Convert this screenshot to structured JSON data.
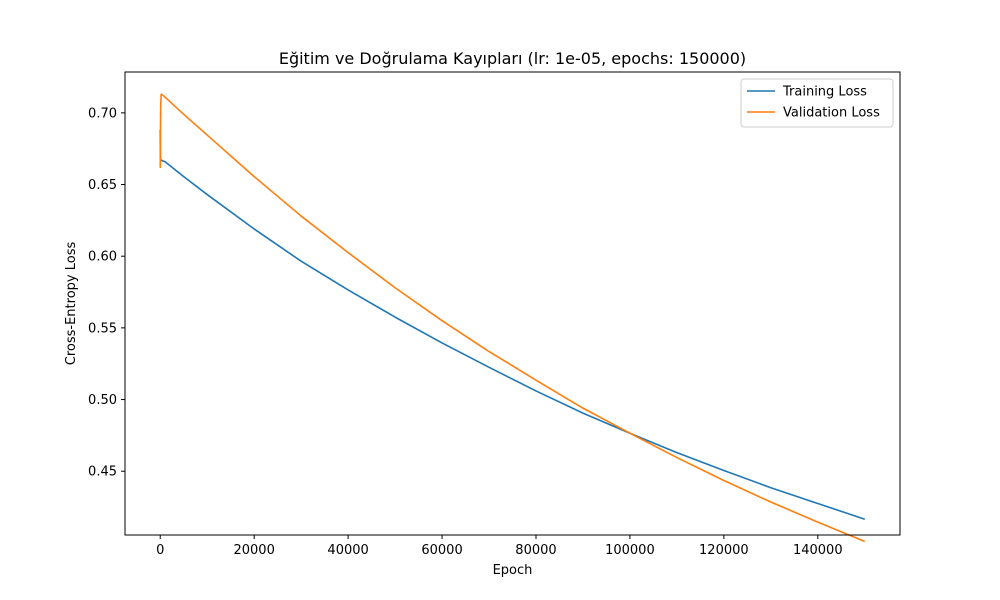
{
  "chart_data": {
    "type": "line",
    "title": "Eğitim ve Doğrulama Kayıpları (lr: 1e-05, epochs: 150000)",
    "xlabel": "Epoch",
    "ylabel": "Cross-Entropy Loss",
    "xlim": [
      -7500,
      157500
    ],
    "ylim": [
      0.4055,
      0.7285
    ],
    "xticks": [
      0,
      20000,
      40000,
      60000,
      80000,
      100000,
      120000,
      140000
    ],
    "xtick_labels": [
      "0",
      "20000",
      "40000",
      "60000",
      "80000",
      "100000",
      "120000",
      "140000"
    ],
    "yticks": [
      0.45,
      0.5,
      0.55,
      0.6,
      0.65,
      0.7
    ],
    "ytick_labels": [
      "0.45",
      "0.50",
      "0.55",
      "0.60",
      "0.65",
      "0.70"
    ],
    "grid": false,
    "legend": "top-right",
    "series": [
      {
        "name": "Training Loss",
        "color": "#1f77b4",
        "x": [
          0,
          10,
          30,
          60,
          100,
          200,
          500,
          1000,
          5000,
          10000,
          20000,
          30000,
          40000,
          50000,
          60000,
          70000,
          80000,
          90000,
          100000,
          110000,
          120000,
          130000,
          140000,
          150000
        ],
        "y": [
          0.688,
          0.679,
          0.671,
          0.668,
          0.6675,
          0.667,
          0.6665,
          0.666,
          0.6555,
          0.643,
          0.619,
          0.5965,
          0.5765,
          0.5575,
          0.5395,
          0.5225,
          0.506,
          0.4905,
          0.4765,
          0.463,
          0.4505,
          0.4385,
          0.4275,
          0.4165
        ]
      },
      {
        "name": "Validation Loss",
        "color": "#ff7f0e",
        "x": [
          0,
          10,
          30,
          60,
          100,
          200,
          500,
          1000,
          5000,
          10000,
          20000,
          30000,
          40000,
          50000,
          60000,
          70000,
          80000,
          90000,
          100000,
          110000,
          120000,
          130000,
          140000,
          150000
        ],
        "y": [
          0.665,
          0.662,
          0.672,
          0.69,
          0.705,
          0.713,
          0.7125,
          0.711,
          0.699,
          0.6845,
          0.6555,
          0.628,
          0.6025,
          0.578,
          0.555,
          0.5335,
          0.5135,
          0.494,
          0.4765,
          0.4595,
          0.4435,
          0.4285,
          0.4145,
          0.401
        ]
      }
    ]
  }
}
